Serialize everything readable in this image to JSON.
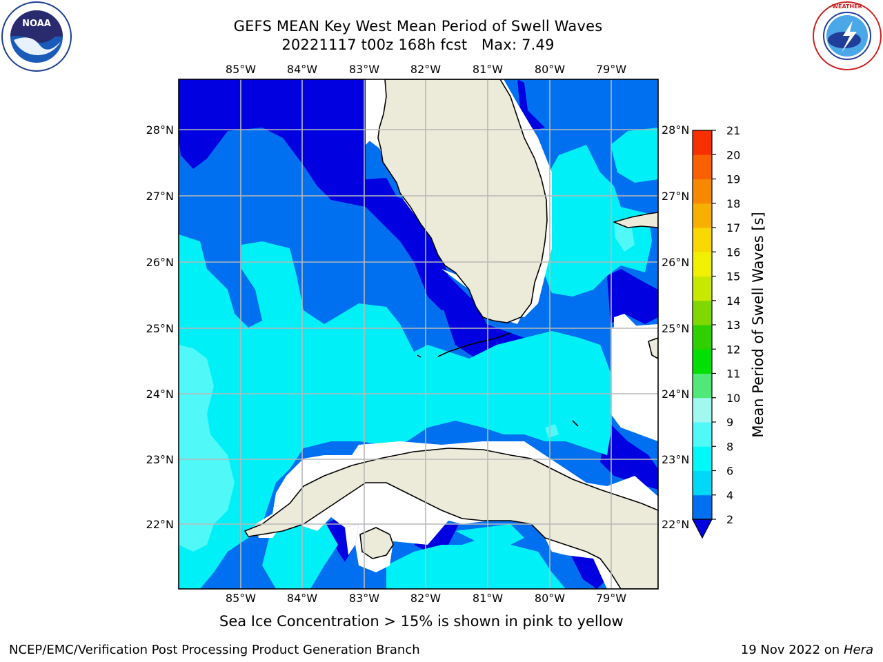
{
  "header": {
    "title_line1": "GEFS MEAN Key West Mean Period of Swell Waves",
    "title_line2": "20221117 t00z 168h fcst   Max: 7.49"
  },
  "logos": {
    "noaa": {
      "text": "NOAA",
      "ring_text": "NATIONAL OCEANIC AND ATMOSPHERIC ADMINISTRATION · U.S. DEPARTMENT OF COMMERCE"
    },
    "nws": {
      "ring_text": "NATIONAL WEATHER SERVICE"
    }
  },
  "map": {
    "lon_labels": [
      "85°W",
      "84°W",
      "83°W",
      "82°W",
      "81°W",
      "80°W",
      "79°W"
    ],
    "lat_labels": [
      "28°N",
      "27°N",
      "26°N",
      "25°N",
      "24°N",
      "23°N",
      "22°N"
    ],
    "land_color": "#ecebda",
    "grid_color": "#b8b8b8"
  },
  "colorbar": {
    "label": "Mean Period of Swell Waves [s]",
    "ticks": [
      "2",
      "4",
      "6",
      "8",
      "9",
      "10",
      "11",
      "12",
      "13",
      "14",
      "15",
      "16",
      "17",
      "18",
      "19",
      "20",
      "21"
    ],
    "colors": [
      "#0070f0",
      "#00d8f8",
      "#00f8f8",
      "#50f8f8",
      "#a0f8f0",
      "#50e878",
      "#00e000",
      "#30d000",
      "#80d800",
      "#c8e800",
      "#f0f000",
      "#f8d800",
      "#f8b000",
      "#f88800",
      "#f86000",
      "#f83000"
    ],
    "extend_color": "#0000e0"
  },
  "note": "Sea Ice Concentration > 15% is shown in pink to yellow",
  "footer": {
    "left": "NCEP/EMC/Verification Post Processing Product Generation Branch",
    "right_date": "19 Nov 2022 on",
    "right_host": "Hera"
  }
}
